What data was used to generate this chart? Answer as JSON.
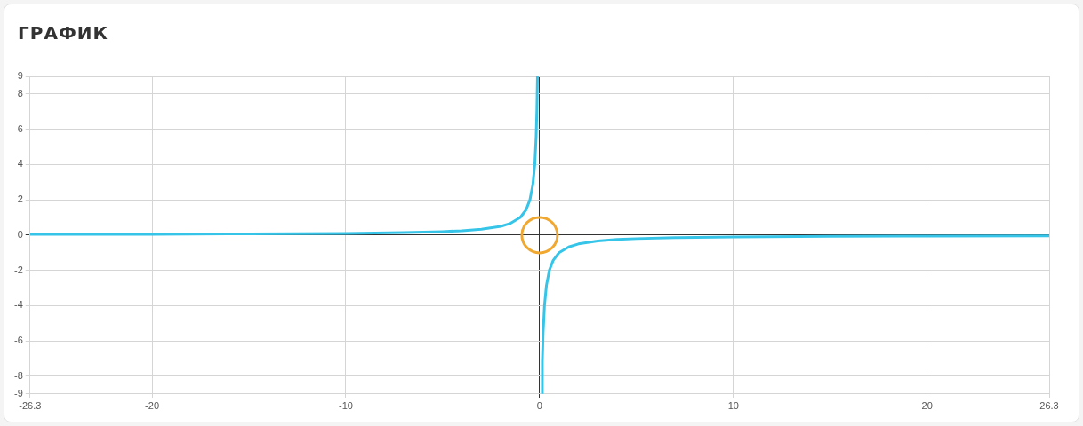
{
  "chart_data": {
    "type": "line",
    "title": "ГРАФИК",
    "grid": true,
    "legend": false,
    "line_style": "solid",
    "xlim": [
      -26.3,
      26.3
    ],
    "xticks": [
      -26.3,
      -20,
      -10,
      0,
      10,
      20,
      26.3
    ],
    "ylim": [
      -9,
      9
    ],
    "yticks": [
      -9,
      -8,
      -6,
      -4,
      -2,
      0,
      2,
      4,
      6,
      8,
      9
    ],
    "series": [
      {
        "type": "line",
        "color": "#36c5e8",
        "marker": "none",
        "x": [
          -26.3,
          -20,
          -15,
          -10,
          -7,
          -5,
          -4,
          -3,
          -2,
          -1.5,
          -1,
          -0.7,
          -0.5,
          -0.35,
          -0.25,
          -0.18,
          -0.14,
          -0.111,
          0,
          0.111,
          0.14,
          0.18,
          0.25,
          0.35,
          0.5,
          0.7,
          1,
          1.5,
          2,
          3,
          4,
          5,
          7,
          10,
          15,
          20,
          26.3
        ],
        "values": [
          0.04,
          0.05,
          0.07,
          0.1,
          0.14,
          0.2,
          0.25,
          0.33,
          0.5,
          0.67,
          1,
          1.43,
          2,
          2.86,
          4,
          5.56,
          7.14,
          9,
          null,
          -9,
          -7.14,
          -5.56,
          -4,
          -2.86,
          -2,
          -1.43,
          -1,
          -0.67,
          -0.5,
          -0.33,
          -0.25,
          -0.2,
          -0.14,
          -0.1,
          -0.07,
          -0.05,
          -0.04
        ]
      },
      {
        "type": "scatter",
        "color": "#f0a830",
        "marker": "circle",
        "x": [
          0
        ],
        "values": [
          0
        ]
      }
    ]
  }
}
